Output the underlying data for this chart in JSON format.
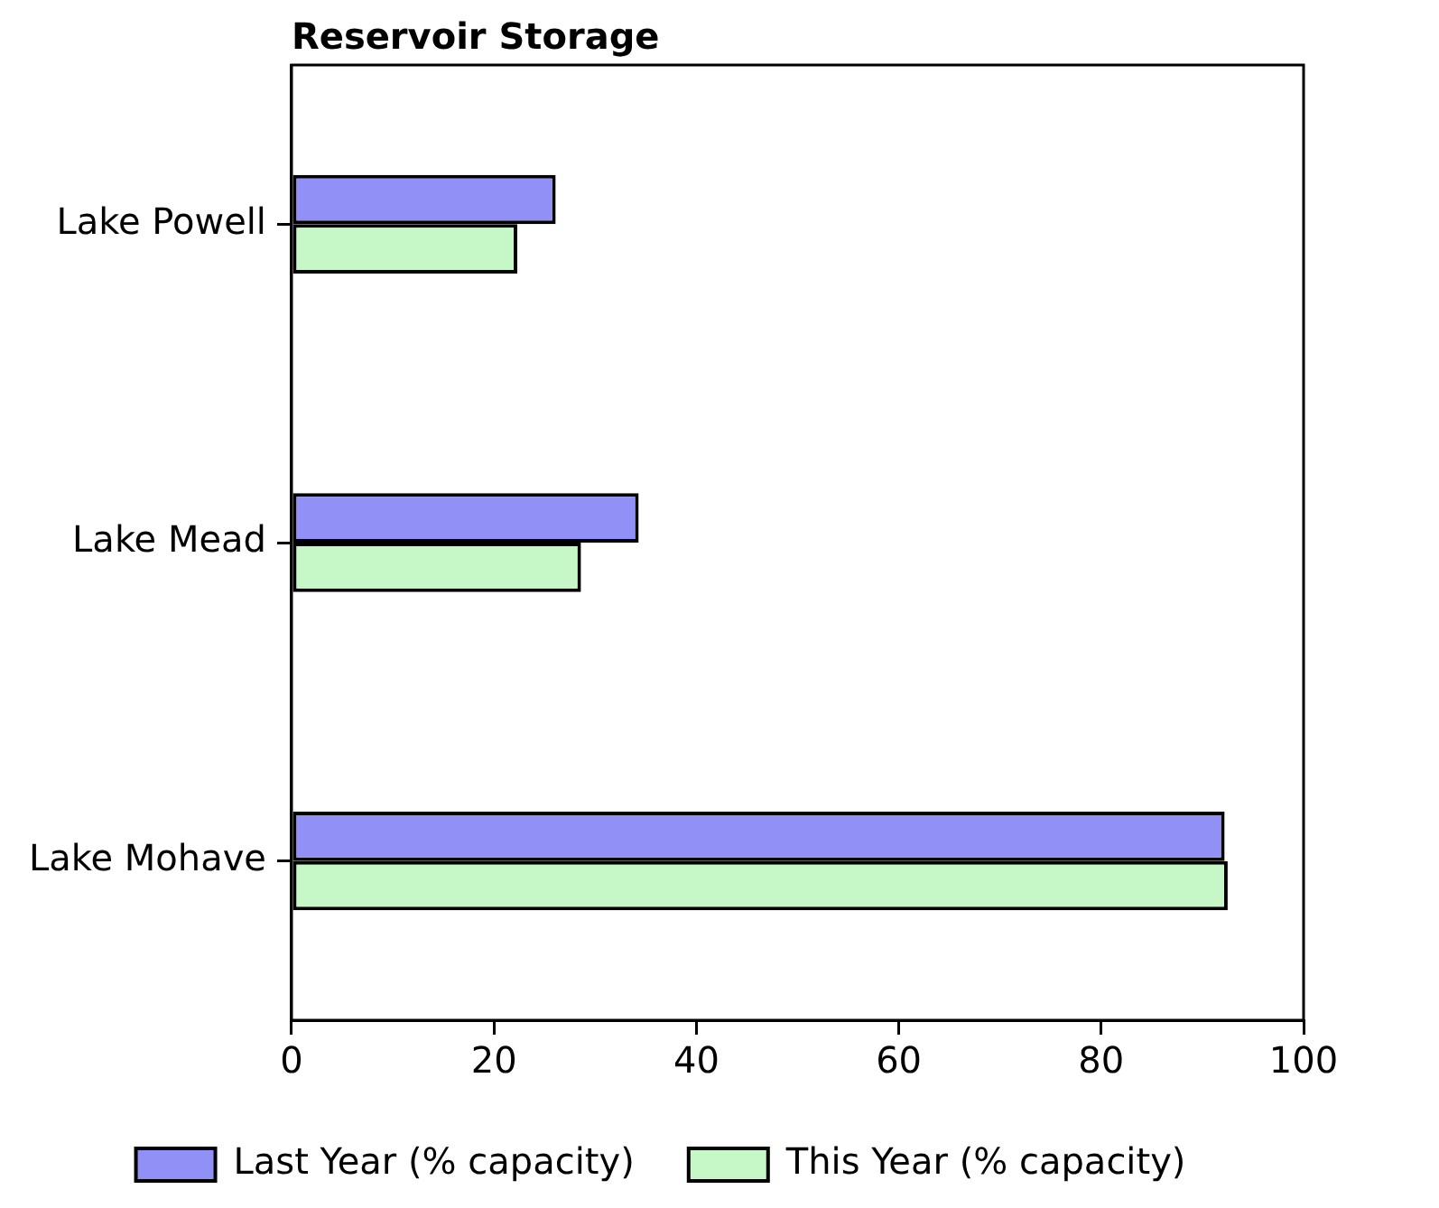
{
  "chart_data": {
    "type": "bar",
    "orientation": "horizontal",
    "title": "Reservoir Storage",
    "categories": [
      "Lake Powell",
      "Lake Mead",
      "Lake Mohave"
    ],
    "series": [
      {
        "name": "Last Year (% capacity)",
        "color": "#9090f7",
        "values": [
          26.1,
          34.3,
          92.2
        ]
      },
      {
        "name": "This Year (% capacity)",
        "color": "#c6f7c6",
        "values": [
          22.3,
          28.6,
          92.5
        ]
      }
    ],
    "xlim": [
      0,
      100
    ],
    "xticks": [
      0,
      20,
      40,
      60,
      80,
      100
    ],
    "grid": false,
    "legend": "bottom"
  }
}
